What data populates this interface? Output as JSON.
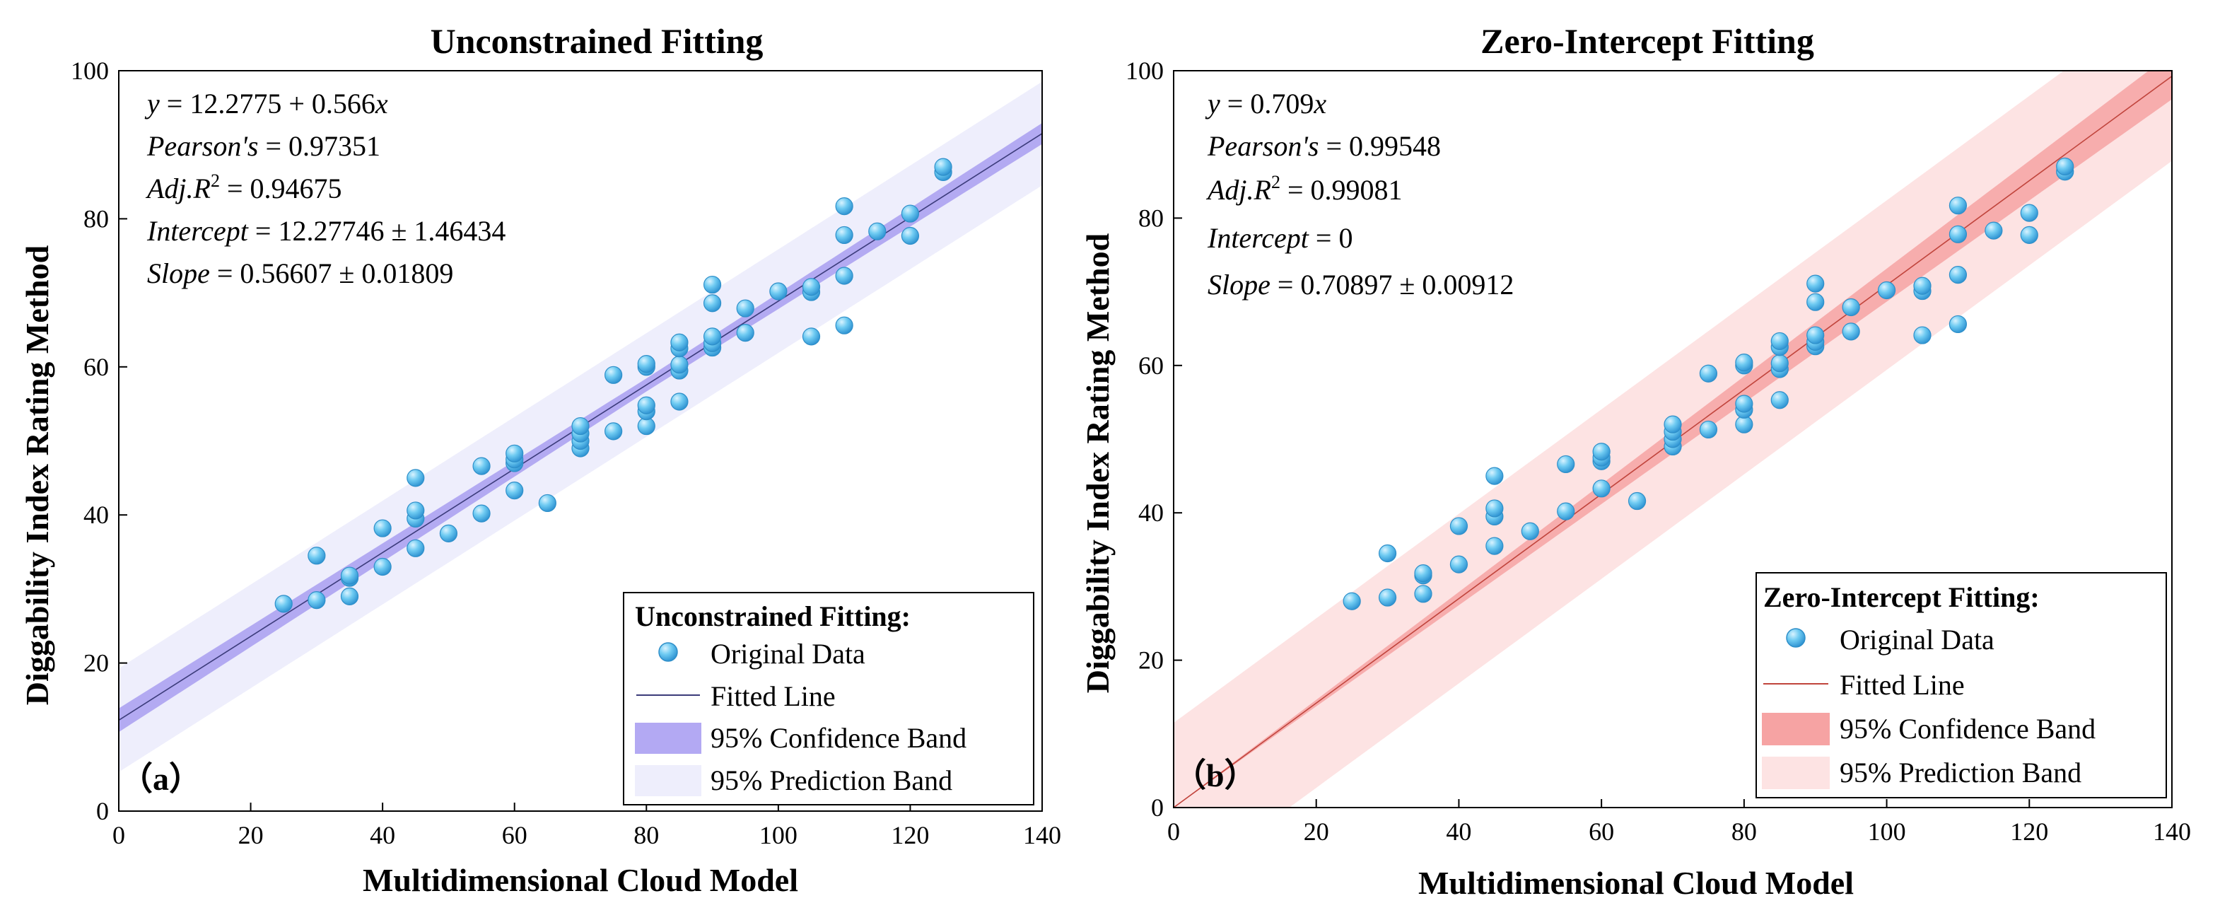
{
  "chart_data": [
    {
      "type": "scatter",
      "id": "a",
      "title": "Unconstrained Fitting",
      "xlabel": "Multidimensional Cloud Model",
      "ylabel": "Diggability Index Rating Method",
      "xlim": [
        0,
        140
      ],
      "ylim": [
        0,
        100
      ],
      "xticks": [
        0,
        20,
        40,
        60,
        80,
        100,
        120,
        140
      ],
      "yticks": [
        0,
        20,
        40,
        60,
        80,
        100
      ],
      "xtick_labels": [
        "0",
        "20",
        "40",
        "60",
        "80",
        "100",
        "120",
        "140"
      ],
      "ytick_labels": [
        "0",
        "20",
        "40",
        "60",
        "80",
        "100"
      ],
      "panel_label": "（a）",
      "fit": {
        "intercept": 12.2775,
        "slope": 0.566,
        "ci_half_width": 1.6,
        "pi_half_width": 7.0
      },
      "annotation": {
        "equation": {
          "lhs": "y",
          "rhs": " = 12.2775 + 0.566",
          "var": "x"
        },
        "pearson": {
          "label": "Pearson's",
          "value": " = 0.97351"
        },
        "adj_r2": {
          "label": "Adj.R",
          "sup": "2",
          "value": " = 0.94675"
        },
        "intercept": {
          "label": "Intercept",
          "value": " = 12.27746  ±  1.46434"
        },
        "slope": {
          "label": "Slope",
          "value": " = 0.56607  ±  0.01809"
        }
      },
      "legend": {
        "title": "Unconstrained Fitting:",
        "items": [
          "Original Data",
          "Fitted Line",
          "95% Confidence Band",
          "95% Prediction Band"
        ]
      },
      "colors": {
        "line": "#3b3b7a",
        "ci": "#a89ef0",
        "pi": "#eeeefc",
        "point": "#5fc4ee",
        "point_edge": "#2f8fc9"
      }
    },
    {
      "type": "scatter",
      "id": "b",
      "title": "Zero-Intercept Fitting",
      "xlabel": "Multidimensional Cloud Model",
      "ylabel": "Diggability Index Rating Method",
      "xlim": [
        0,
        140
      ],
      "ylim": [
        0,
        100
      ],
      "xticks": [
        0,
        20,
        40,
        60,
        80,
        100,
        120,
        140
      ],
      "yticks": [
        0,
        20,
        40,
        60,
        80,
        100
      ],
      "xtick_labels": [
        "0",
        "20",
        "40",
        "60",
        "80",
        "100",
        "120",
        "140"
      ],
      "ytick_labels": [
        "0",
        "20",
        "40",
        "60",
        "80",
        "100"
      ],
      "panel_label": "（b）",
      "fit": {
        "intercept": 0,
        "slope": 0.709,
        "ci_half_width_slope": 0.016,
        "pi_half_width": 11.5
      },
      "annotation": {
        "equation": {
          "lhs": "y",
          "rhs": " = 0.709",
          "var": "x"
        },
        "pearson": {
          "label": "Pearson's",
          "value": " = 0.99548"
        },
        "adj_r2": {
          "label": "Adj.R",
          "sup": "2",
          "value": " = 0.99081"
        },
        "intercept": {
          "label": "Intercept",
          "value": " = 0"
        },
        "slope": {
          "label": "Slope",
          "value": " = 0.70897 ± 0.00912"
        }
      },
      "legend": {
        "title": "Zero-Intercept Fitting:",
        "items": [
          "Original Data",
          "Fitted Line",
          "95% Confidence Band",
          "95% Prediction Band"
        ]
      },
      "colors": {
        "line": "#c0443c",
        "ci": "#f6a3a3",
        "pi": "#fde3e3",
        "point": "#5fc4ee",
        "point_edge": "#2f8fc9"
      }
    }
  ],
  "points": [
    [
      25,
      28
    ],
    [
      30,
      28.5
    ],
    [
      30,
      34.5
    ],
    [
      35,
      29
    ],
    [
      35,
      31.5
    ],
    [
      35,
      31.8
    ],
    [
      40,
      33
    ],
    [
      40,
      38.2
    ],
    [
      45,
      35.5
    ],
    [
      45,
      39.5
    ],
    [
      45,
      40.6
    ],
    [
      45,
      45
    ],
    [
      50,
      37.5
    ],
    [
      55,
      40.2
    ],
    [
      55,
      46.6
    ],
    [
      60,
      43.3
    ],
    [
      60,
      47
    ],
    [
      60,
      47.5
    ],
    [
      60,
      48.3
    ],
    [
      65,
      41.6
    ],
    [
      70,
      49
    ],
    [
      70,
      50
    ],
    [
      70,
      51
    ],
    [
      70,
      52
    ],
    [
      75,
      51.3
    ],
    [
      75,
      58.9
    ],
    [
      80,
      52
    ],
    [
      80,
      54
    ],
    [
      80,
      54.8
    ],
    [
      80,
      60
    ],
    [
      80,
      60.4
    ],
    [
      85,
      55.3
    ],
    [
      85,
      59.5
    ],
    [
      85,
      60.3
    ],
    [
      85,
      62.5
    ],
    [
      85,
      63.3
    ],
    [
      90,
      62.6
    ],
    [
      90,
      63.2
    ],
    [
      90,
      64.1
    ],
    [
      90,
      68.6
    ],
    [
      90,
      71.1
    ],
    [
      95,
      64.6
    ],
    [
      95,
      67.9
    ],
    [
      100,
      70.2
    ],
    [
      105,
      64.1
    ],
    [
      105,
      70.1
    ],
    [
      105,
      70.8
    ],
    [
      110,
      65.6
    ],
    [
      110,
      72.3
    ],
    [
      110,
      77.8
    ],
    [
      110,
      81.7
    ],
    [
      115,
      78.3
    ],
    [
      120,
      77.7
    ],
    [
      120,
      80.7
    ],
    [
      125,
      86.3
    ],
    [
      125,
      87
    ]
  ]
}
